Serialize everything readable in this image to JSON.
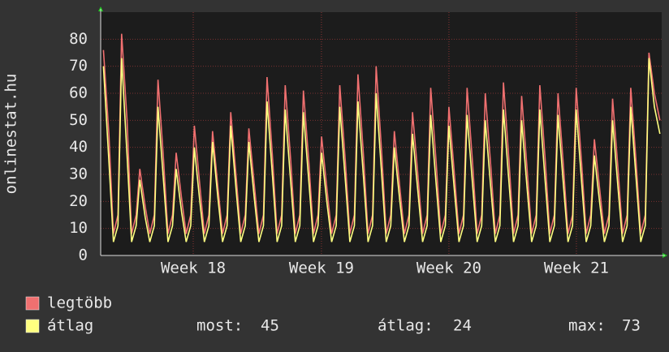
{
  "chart_data": {
    "type": "line",
    "y_label": "onlinestat.hu",
    "xlim": [
      0,
      30.85
    ],
    "xticks": [
      {
        "value": 5.09,
        "label": "Week 18"
      },
      {
        "value": 12.14,
        "label": "Week 19"
      },
      {
        "value": 19.15,
        "label": "Week 20"
      },
      {
        "value": 26.16,
        "label": "Week 21"
      }
    ],
    "ylim": [
      0,
      90
    ],
    "yticks": [
      0,
      10,
      20,
      30,
      40,
      50,
      60,
      70,
      80
    ],
    "grid": true,
    "x": [
      0.15,
      0.45,
      0.7,
      0.95,
      1.15,
      1.45,
      1.7,
      1.95,
      2.15,
      2.45,
      2.7,
      2.95,
      3.15,
      3.45,
      3.7,
      3.95,
      4.15,
      4.45,
      4.7,
      4.95,
      5.15,
      5.45,
      5.7,
      5.95,
      6.15,
      6.45,
      6.7,
      6.95,
      7.15,
      7.45,
      7.7,
      7.95,
      8.15,
      8.45,
      8.7,
      8.95,
      9.15,
      9.45,
      9.7,
      9.95,
      10.15,
      10.45,
      10.7,
      10.95,
      11.15,
      11.45,
      11.7,
      11.95,
      12.15,
      12.45,
      12.7,
      12.95,
      13.15,
      13.45,
      13.7,
      13.95,
      14.15,
      14.45,
      14.7,
      14.95,
      15.15,
      15.45,
      15.7,
      15.95,
      16.15,
      16.45,
      16.7,
      16.95,
      17.15,
      17.45,
      17.7,
      17.95,
      18.15,
      18.45,
      18.7,
      18.95,
      19.15,
      19.45,
      19.7,
      19.95,
      20.15,
      20.45,
      20.7,
      20.95,
      21.15,
      21.45,
      21.7,
      21.95,
      22.15,
      22.45,
      22.7,
      22.95,
      23.15,
      23.45,
      23.7,
      23.95,
      24.15,
      24.45,
      24.7,
      24.95,
      25.15,
      25.45,
      25.7,
      25.95,
      26.15,
      26.45,
      26.7,
      26.95,
      27.15,
      27.45,
      27.7,
      27.95,
      28.15,
      28.45,
      28.7,
      28.95,
      29.15,
      29.45,
      29.7,
      29.95,
      30.15,
      30.45,
      30.75
    ],
    "series": [
      {
        "name": "legtöbb",
        "color": "#f07070",
        "values": [
          76,
          45,
          8,
          15,
          82,
          50,
          8,
          15,
          32,
          18,
          8,
          15,
          65,
          36,
          8,
          15,
          38,
          21,
          8,
          15,
          48,
          26,
          8,
          15,
          46,
          25,
          8,
          15,
          53,
          29,
          8,
          15,
          47,
          26,
          8,
          15,
          66,
          36,
          8,
          15,
          63,
          35,
          8,
          15,
          61,
          34,
          8,
          15,
          44,
          24,
          8,
          15,
          63,
          35,
          8,
          15,
          67,
          37,
          8,
          15,
          70,
          38,
          8,
          15,
          46,
          25,
          8,
          15,
          53,
          29,
          8,
          15,
          62,
          34,
          8,
          15,
          55,
          30,
          8,
          15,
          62,
          34,
          8,
          15,
          60,
          33,
          8,
          15,
          64,
          35,
          8,
          15,
          59,
          32,
          8,
          15,
          63,
          35,
          8,
          15,
          60,
          33,
          8,
          15,
          62,
          34,
          8,
          15,
          43,
          24,
          8,
          15,
          58,
          32,
          8,
          15,
          62,
          34,
          8,
          15,
          75,
          60,
          50
        ]
      },
      {
        "name": "átlag",
        "color": "#ffff80",
        "values": [
          70,
          35,
          5,
          11,
          73,
          37,
          5,
          11,
          28,
          14,
          5,
          11,
          55,
          28,
          5,
          11,
          32,
          16,
          5,
          11,
          40,
          20,
          5,
          11,
          42,
          21,
          5,
          11,
          48,
          24,
          5,
          11,
          42,
          21,
          5,
          11,
          57,
          29,
          5,
          11,
          54,
          27,
          5,
          11,
          53,
          27,
          5,
          11,
          38,
          19,
          5,
          11,
          55,
          28,
          5,
          11,
          57,
          29,
          5,
          11,
          60,
          30,
          5,
          11,
          40,
          20,
          5,
          11,
          45,
          23,
          5,
          11,
          52,
          26,
          5,
          11,
          48,
          24,
          5,
          11,
          52,
          26,
          5,
          11,
          50,
          25,
          5,
          11,
          54,
          27,
          5,
          11,
          50,
          25,
          5,
          11,
          54,
          27,
          5,
          11,
          52,
          26,
          5,
          11,
          54,
          27,
          5,
          11,
          37,
          19,
          5,
          11,
          50,
          25,
          5,
          11,
          55,
          28,
          5,
          11,
          73,
          55,
          45
        ]
      }
    ],
    "stats": [
      {
        "label": "most:",
        "value": 45
      },
      {
        "label": "átlag:",
        "value": 24
      },
      {
        "label": "max:",
        "value": 73
      }
    ]
  }
}
